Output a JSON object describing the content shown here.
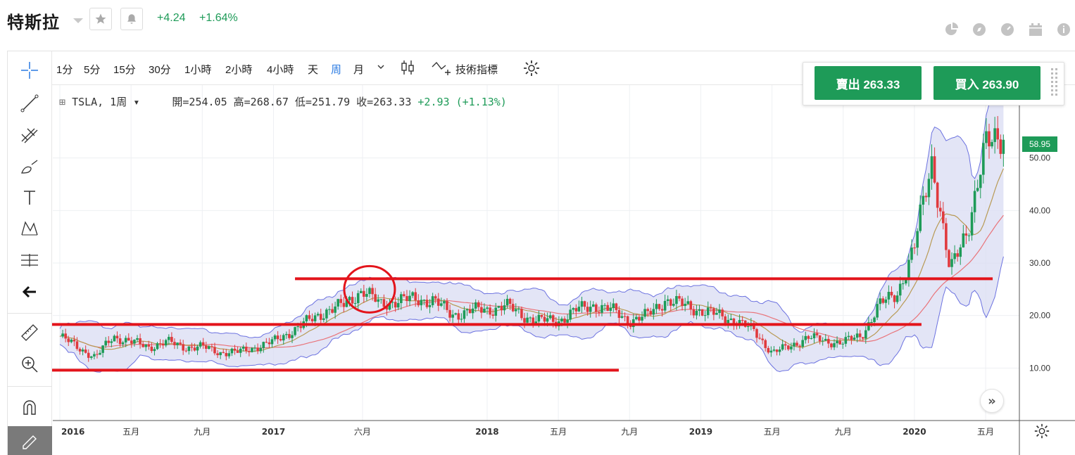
{
  "header": {
    "title": "特斯拉",
    "change_abs": "+4.24",
    "change_pct": "+1.64%",
    "icons": [
      "star-icon",
      "bell-icon",
      "pie-chart-icon",
      "compass-icon",
      "gauge-icon",
      "calendar-icon",
      "info-icon"
    ]
  },
  "toolbar": {
    "intervals": [
      {
        "label": "1分"
      },
      {
        "label": "5分"
      },
      {
        "label": "15分"
      },
      {
        "label": "30分"
      },
      {
        "label": "1小時"
      },
      {
        "label": "2小時"
      },
      {
        "label": "4小時"
      },
      {
        "label": "天"
      },
      {
        "label": "周"
      },
      {
        "label": "月"
      }
    ],
    "active_interval": "周",
    "indicators_label": "技術指標"
  },
  "legend": {
    "symbol": "TSLA, 1周",
    "open": "開=254.05",
    "high": "高=268.67",
    "low": "低=251.79",
    "close": "收=263.33",
    "change": "+2.93 (+1.13%)"
  },
  "trade": {
    "sell_label": "賣出 263.33",
    "buy_label": "買入 263.90"
  },
  "price_tag": "58.95",
  "colors": {
    "up": "#1e9b58",
    "down": "#e03a3e",
    "band_fill": "#dadcf3",
    "band_line": "#6c72e0",
    "annotation": "#e3141b",
    "active": "#2a7ae2"
  },
  "chart_data": {
    "type": "line",
    "yaxis": {
      "ticks": [
        "10.00",
        "20.00",
        "30.00",
        "40.00",
        "50.00"
      ],
      "range": [
        0,
        60
      ]
    },
    "xaxis": {
      "ticks": [
        "2016",
        "五月",
        "九月",
        "2017",
        "六月",
        "2018",
        "五月",
        "九月",
        "2019",
        "五月",
        "九月",
        "2020",
        "五月"
      ]
    },
    "series": [
      {
        "x": [
          "2016-01",
          "2016-02",
          "2016-03",
          "2016-04",
          "2016-05",
          "2016-06",
          "2016-07",
          "2016-08",
          "2016-09",
          "2016-10",
          "2016-11",
          "2016-12",
          "2017-01",
          "2017-02",
          "2017-03",
          "2017-04",
          "2017-05",
          "2017-06",
          "2017-07",
          "2017-08",
          "2017-09",
          "2017-10",
          "2017-11",
          "2017-12",
          "2018-01",
          "2018-02",
          "2018-03",
          "2018-04",
          "2018-05",
          "2018-06",
          "2018-07",
          "2018-08",
          "2018-09",
          "2018-10",
          "2018-11",
          "2018-12",
          "2019-01",
          "2019-02",
          "2019-03",
          "2019-04",
          "2019-05",
          "2019-06",
          "2019-07",
          "2019-08",
          "2019-09",
          "2019-10",
          "2019-11",
          "2019-12",
          "2020-01",
          "2020-02",
          "2020-03",
          "2020-04",
          "2020-05",
          "2020-06"
        ],
        "values": [
          16,
          14,
          12,
          16,
          15,
          14,
          15,
          14,
          14,
          13,
          13,
          14,
          15,
          17,
          19,
          21,
          22,
          25,
          22,
          23,
          23,
          23,
          20,
          21,
          21,
          22,
          20,
          19,
          19,
          21,
          22,
          21,
          19,
          20,
          23,
          22,
          21,
          20,
          19,
          17,
          13,
          14,
          16,
          15,
          15,
          16,
          22,
          24,
          33,
          50,
          28,
          37,
          52,
          55
        ]
      }
    ],
    "annotations": [
      {
        "type": "horizontal-line",
        "from": "2017-03",
        "to": "2020-05",
        "y": 27
      },
      {
        "type": "horizontal-line",
        "from": "2016-01",
        "to": "2020-01",
        "y": 18.3
      },
      {
        "type": "horizontal-line",
        "from": "2016-01",
        "to": "2018-08",
        "y": 9.6
      },
      {
        "type": "circle",
        "at": "2017-06",
        "y": 25
      }
    ]
  }
}
